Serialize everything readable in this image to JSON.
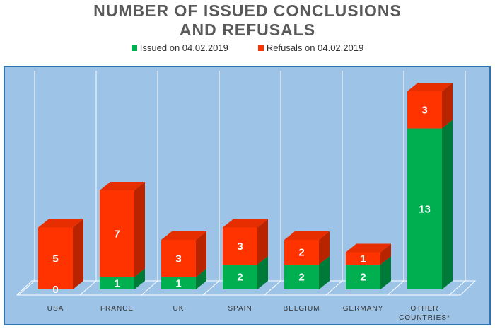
{
  "colors": {
    "issued": "#00b050",
    "issued_side": "#007a38",
    "issued_top": "#4fcf83",
    "refused": "#ff3300",
    "refused_side": "#b82300",
    "refused_top": "#e62e00",
    "plot_bg": "#9dc3e6",
    "plot_border": "#2e75b6",
    "title": "#595959"
  },
  "chart_data": {
    "type": "bar",
    "stacked": true,
    "three_d": true,
    "title_lines": [
      "NUMBER OF ISSUED CONCLUSIONS",
      "AND REFUSALS"
    ],
    "categories": [
      "USA",
      "FRANCE",
      "UK",
      "SPAIN",
      "BELGIUM",
      "GERMANY",
      "OTHER COUNTRIES*"
    ],
    "category_lines": [
      [
        "USA"
      ],
      [
        "FRANCE"
      ],
      [
        "UK"
      ],
      [
        "SPAIN"
      ],
      [
        "BELGIUM"
      ],
      [
        "GERMANY"
      ],
      [
        "OTHER",
        "COUNTRIES*"
      ]
    ],
    "series": [
      {
        "name": "Issued on 04.02.2019",
        "values": [
          0,
          1,
          1,
          2,
          2,
          2,
          13
        ]
      },
      {
        "name": "Refusals on 04.02.2019",
        "values": [
          5,
          7,
          3,
          3,
          2,
          1,
          3
        ]
      }
    ],
    "legend_position": "top",
    "grid": "vertical",
    "ylim": [
      0,
      16
    ]
  }
}
